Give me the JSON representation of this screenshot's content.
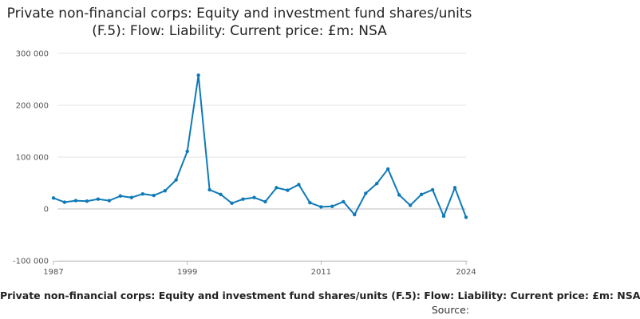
{
  "chart_data": {
    "type": "line",
    "title": "Private non-financial corps: Equity and investment fund shares/units (F.5): Flow: Liability: Current price: £m: NSA",
    "x": [
      1987,
      1988,
      1989,
      1990,
      1991,
      1992,
      1993,
      1994,
      1995,
      1996,
      1997,
      1998,
      1999,
      2000,
      2001,
      2002,
      2003,
      2004,
      2005,
      2006,
      2007,
      2008,
      2009,
      2010,
      2011,
      2012,
      2013,
      2014,
      2015,
      2016,
      2017,
      2018,
      2019,
      2020,
      2021,
      2022,
      2023,
      2024
    ],
    "series": [
      {
        "name": "",
        "color": "#0f7ab8",
        "values": [
          21000,
          13000,
          16000,
          15000,
          19000,
          16000,
          25000,
          22000,
          29000,
          26000,
          35000,
          56000,
          111000,
          258000,
          37000,
          28000,
          11000,
          19000,
          22000,
          14000,
          41000,
          36000,
          47000,
          12000,
          4000,
          5000,
          14000,
          -11000,
          30000,
          49000,
          77000,
          27000,
          7000,
          28000,
          37000,
          -14000,
          41000,
          -16000
        ]
      }
    ],
    "x_ticks": [
      "1987",
      "1999",
      "2011",
      "2024"
    ],
    "y_ticks": [
      "300 000",
      "200 000",
      "100 000",
      "0",
      "-100 000"
    ],
    "y_tick_values": [
      300000,
      200000,
      100000,
      0,
      -100000
    ],
    "ylim": [
      -100000,
      300000
    ],
    "xlim": [
      1987,
      2024
    ],
    "grid": "horizontal",
    "caption": "Private non-financial corps: Equity and investment fund shares/units (F.5): Flow: Liability: Current price: £m: NSA",
    "source": "Source:"
  }
}
